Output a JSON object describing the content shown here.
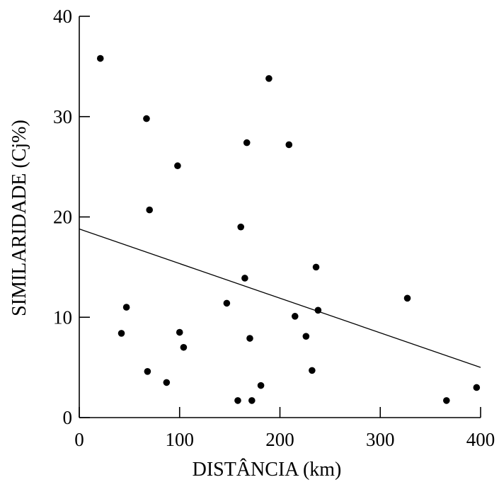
{
  "chart_data": {
    "type": "scatter",
    "title": "",
    "xlabel": "DISTÂNCIA (km)",
    "ylabel": "SIMILARIDADE (Cj%)",
    "xlim": [
      0,
      400
    ],
    "ylim": [
      0,
      40
    ],
    "xticks": [
      0,
      100,
      200,
      300,
      400
    ],
    "yticks": [
      0,
      10,
      20,
      30,
      40
    ],
    "grid": false,
    "legend": "none",
    "marker_color": "#000000",
    "points": [
      {
        "x": 21,
        "y": 35.8
      },
      {
        "x": 67,
        "y": 29.8
      },
      {
        "x": 70,
        "y": 20.7
      },
      {
        "x": 98,
        "y": 25.1
      },
      {
        "x": 47,
        "y": 11.0
      },
      {
        "x": 42,
        "y": 8.4
      },
      {
        "x": 68,
        "y": 4.6
      },
      {
        "x": 87,
        "y": 3.5
      },
      {
        "x": 100,
        "y": 8.5
      },
      {
        "x": 104,
        "y": 7.0
      },
      {
        "x": 147,
        "y": 11.4
      },
      {
        "x": 161,
        "y": 19.0
      },
      {
        "x": 165,
        "y": 13.9
      },
      {
        "x": 167,
        "y": 27.4
      },
      {
        "x": 170,
        "y": 7.9
      },
      {
        "x": 158,
        "y": 1.7
      },
      {
        "x": 172,
        "y": 1.7
      },
      {
        "x": 181,
        "y": 3.2
      },
      {
        "x": 189,
        "y": 33.8
      },
      {
        "x": 209,
        "y": 27.2
      },
      {
        "x": 215,
        "y": 10.1
      },
      {
        "x": 226,
        "y": 8.1
      },
      {
        "x": 232,
        "y": 4.7
      },
      {
        "x": 236,
        "y": 15.0
      },
      {
        "x": 238,
        "y": 10.7
      },
      {
        "x": 327,
        "y": 11.9
      },
      {
        "x": 366,
        "y": 1.7
      },
      {
        "x": 396,
        "y": 3.0
      }
    ],
    "trendline": {
      "x": [
        0,
        400
      ],
      "y": [
        18.8,
        5.0
      ]
    }
  }
}
